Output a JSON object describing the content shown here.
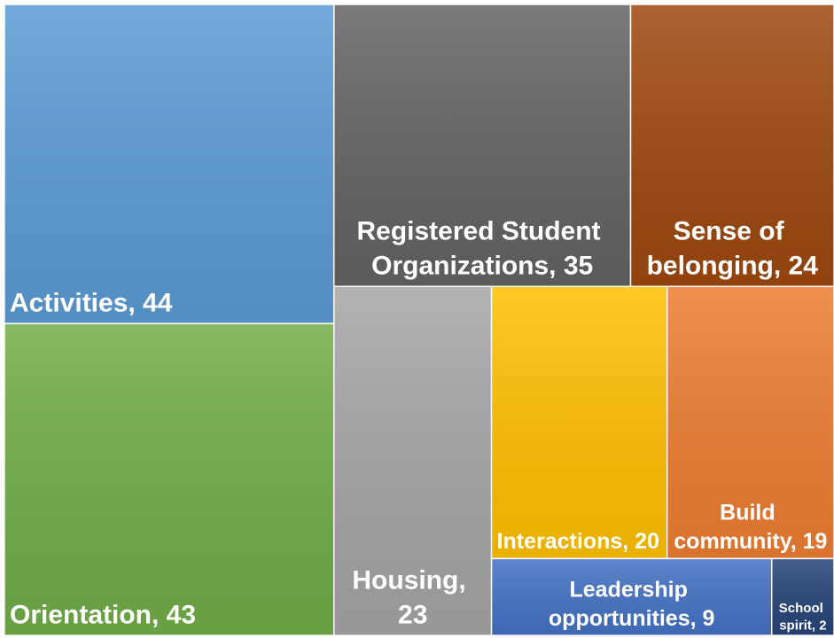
{
  "chart_data": {
    "type": "treemap",
    "categories": [
      "Activities, 44",
      "Orientation, 43",
      "Registered Student Organizations, 35",
      "Sense of belonging, 24",
      "Housing, 23",
      "Interactions, 20",
      "Build community, 19",
      "Leadership opportunities, 9",
      "School spirit, 2"
    ],
    "values": [
      44,
      43,
      35,
      24,
      23,
      20,
      19,
      9,
      2
    ],
    "colors": [
      "#5b9bd5",
      "#70ad47",
      "#636363",
      "#9e480e",
      "#a5a5a5",
      "#ffc000",
      "#ed7d31",
      "#4472c4",
      "#264478"
    ]
  }
}
